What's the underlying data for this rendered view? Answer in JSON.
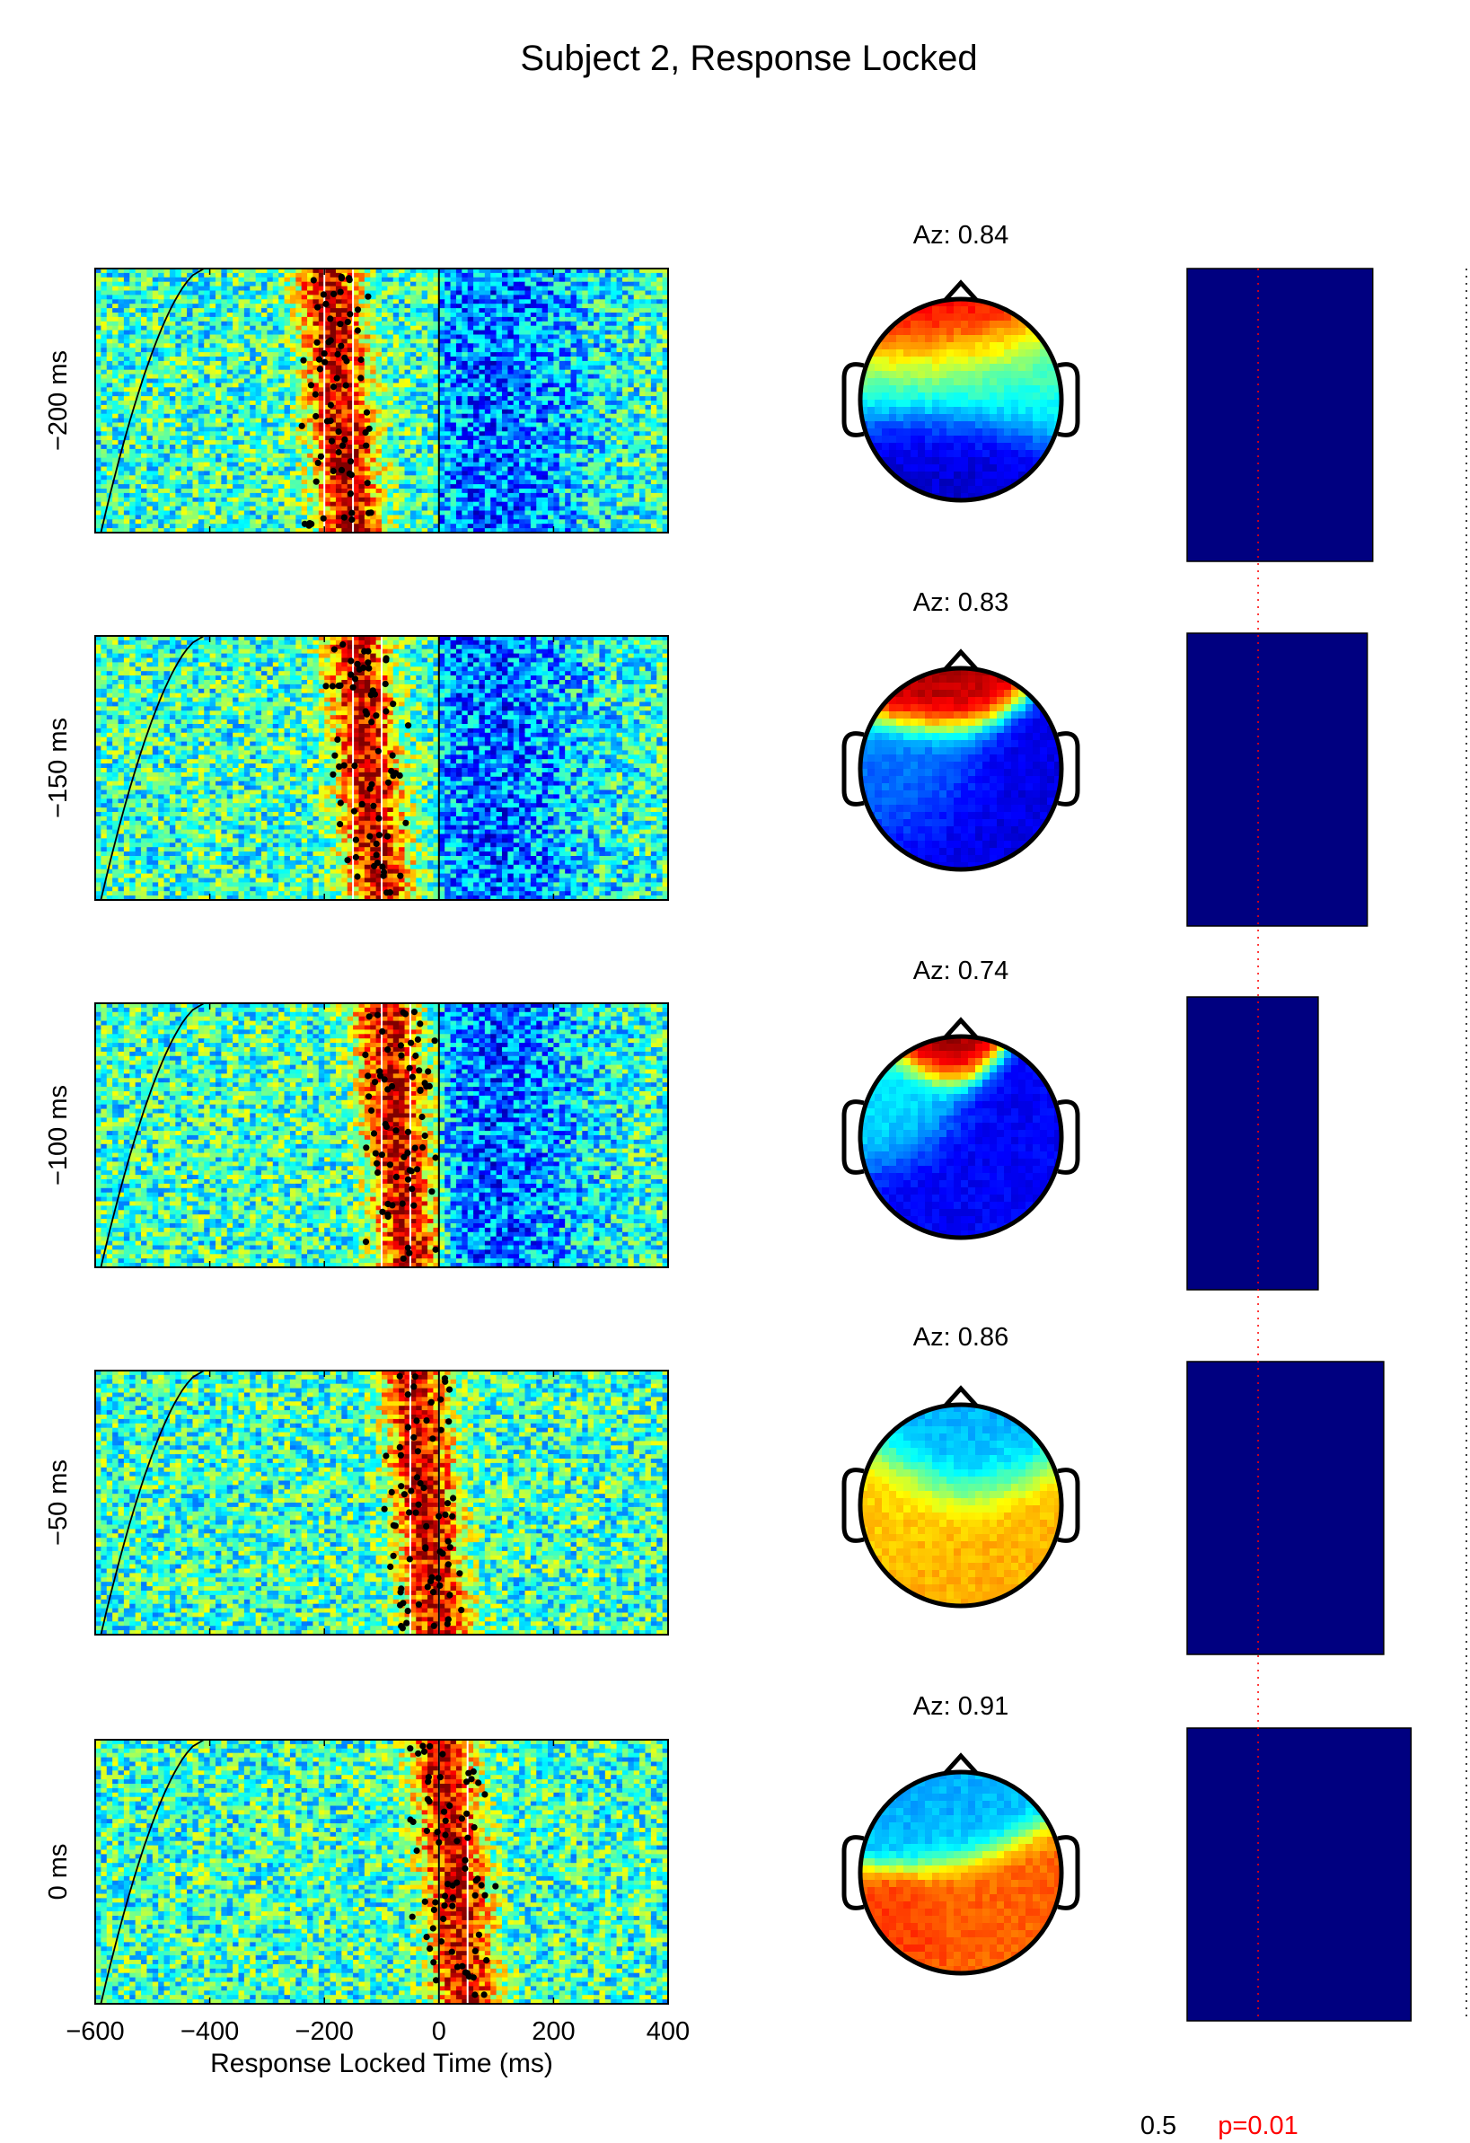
{
  "title": "Subject 2, Response Locked",
  "colors": {
    "bar": "#000080",
    "threshold": "#ff0000",
    "axis": "#000000",
    "response_line": "#000000",
    "window_line": "#ffffff",
    "trial_dots": "#000000"
  },
  "chart_data": [
    {
      "type": "heatmap",
      "description_of_marks": "single-trial ERP images sorted by reaction time, one per analysis window",
      "xlabel": "Response Locked Time (ms)",
      "xlim": [
        -600,
        400
      ],
      "xticks": [
        -600,
        -400,
        -200,
        0,
        200,
        400
      ],
      "xtick_labels": [
        "−600",
        "−400",
        "−200",
        "0",
        "200",
        "400"
      ],
      "row_labels": [
        "−200 ms",
        "−150 ms",
        "−100 ms",
        "−50 ms",
        "0 ms"
      ],
      "window_starts_ms": [
        -200,
        -150,
        -100,
        -50,
        0
      ],
      "window_length_ms": 50,
      "response_line_ms": 0,
      "colormap": "jet"
    },
    {
      "type": "heatmap",
      "description_of_marks": "scalp topographies (forward models) per window",
      "labels": [
        "Az: 0.84",
        "Az: 0.83",
        "Az: 0.74",
        "Az: 0.86",
        "Az: 0.91"
      ],
      "colormap": "jet"
    },
    {
      "type": "bar",
      "orientation": "horizontal",
      "categories": [
        "−200 ms",
        "−150 ms",
        "−100 ms",
        "−50 ms",
        "0 ms"
      ],
      "values": [
        0.84,
        0.83,
        0.74,
        0.86,
        0.91
      ],
      "xlim": [
        0.5,
        1.0
      ],
      "xtick_labels": [
        "0.5"
      ],
      "threshold": {
        "value": 0.63,
        "label": "p=0.01"
      }
    }
  ]
}
